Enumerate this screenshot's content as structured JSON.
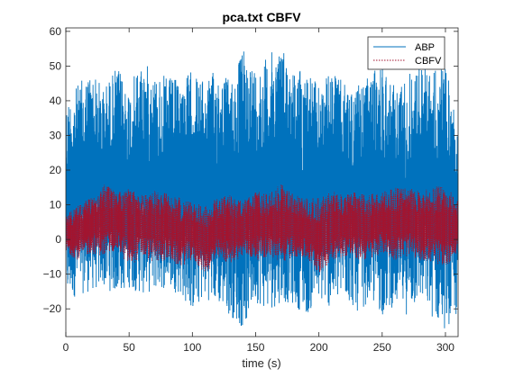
{
  "chart_data": {
    "type": "line",
    "title": "pca.txt CBFV",
    "xlabel": "time (s)",
    "ylabel": "",
    "xlim": [
      0,
      310
    ],
    "ylim": [
      -28,
      61
    ],
    "x_ticks": [
      0,
      50,
      100,
      150,
      200,
      250,
      300
    ],
    "y_ticks": [
      -20,
      -10,
      0,
      10,
      20,
      30,
      40,
      50,
      60
    ],
    "grid": false,
    "legend_position": "top-right",
    "series": [
      {
        "name": "ABP",
        "color": "#0072BD",
        "style": "solid",
        "band": {
          "x": [
            0,
            10,
            20,
            30,
            40,
            50,
            60,
            70,
            80,
            90,
            100,
            110,
            120,
            130,
            140,
            150,
            160,
            170,
            180,
            190,
            200,
            210,
            220,
            230,
            240,
            250,
            260,
            270,
            280,
            290,
            300,
            310
          ],
          "upper": [
            40,
            45,
            49,
            44,
            50,
            44,
            52,
            48,
            47,
            46,
            49,
            45,
            50,
            46,
            55,
            50,
            53,
            57,
            49,
            50,
            44,
            49,
            45,
            44,
            47,
            52,
            44,
            48,
            51,
            49,
            50,
            34
          ],
          "lower": [
            -18,
            -16,
            -15,
            -14,
            -16,
            -14,
            -16,
            -15,
            -14,
            -16,
            -21,
            -17,
            -19,
            -22,
            -26,
            -18,
            -21,
            -18,
            -19,
            -22,
            -18,
            -20,
            -17,
            -21,
            -18,
            -22,
            -19,
            -22,
            -18,
            -23,
            -26,
            -22
          ]
        }
      },
      {
        "name": "CBFV",
        "color": "#A2142F",
        "style": "dotted",
        "band": {
          "x": [
            0,
            10,
            20,
            30,
            40,
            50,
            60,
            70,
            80,
            90,
            100,
            110,
            120,
            130,
            140,
            150,
            160,
            170,
            180,
            190,
            200,
            210,
            220,
            230,
            240,
            250,
            260,
            270,
            280,
            290,
            300,
            310
          ],
          "upper": [
            7,
            10,
            13,
            16,
            14,
            15,
            13,
            14,
            14,
            12,
            11,
            10,
            12,
            13,
            11,
            14,
            13,
            16,
            13,
            12,
            12,
            14,
            13,
            14,
            13,
            14,
            15,
            15,
            14,
            15,
            16,
            11
          ],
          "lower": [
            -4,
            -6,
            -4,
            -5,
            -3,
            -8,
            -5,
            -7,
            -6,
            -8,
            -6,
            -10,
            -6,
            -7,
            -5,
            -6,
            -5,
            -7,
            -5,
            -6,
            -10,
            -6,
            -5,
            -6,
            -6,
            -4,
            -6,
            -5,
            -6,
            -7,
            -8,
            -4
          ]
        }
      }
    ]
  },
  "colors": {
    "abp": "#0072BD",
    "cbfv": "#A2142F",
    "axes": "#262626"
  }
}
